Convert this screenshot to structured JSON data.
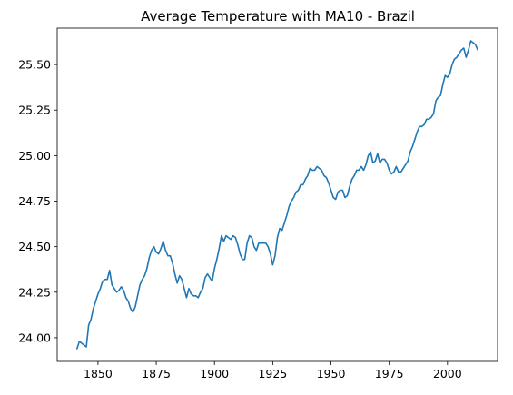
{
  "chart_data": {
    "type": "line",
    "title": "Average Temperature with MA10 - Brazil",
    "xlabel": "",
    "ylabel": "",
    "xlim": [
      1832.5,
      2021.5
    ],
    "ylim": [
      23.87,
      25.7
    ],
    "x_ticks": [
      1850,
      1875,
      1900,
      1925,
      1950,
      1975,
      2000
    ],
    "y_ticks": [
      24.0,
      24.25,
      24.5,
      24.75,
      25.0,
      25.25,
      25.5
    ],
    "x_tick_labels": [
      "1850",
      "1875",
      "1900",
      "1925",
      "1950",
      "1975",
      "2000"
    ],
    "y_tick_labels": [
      "24.00",
      "24.25",
      "24.50",
      "24.75",
      "25.00",
      "25.25",
      "25.50"
    ],
    "grid": false,
    "series": [
      {
        "color": "#1f77b4",
        "x": [
          1841,
          1842,
          1843,
          1844,
          1845,
          1846,
          1847,
          1848,
          1849,
          1850,
          1851,
          1852,
          1853,
          1854,
          1855,
          1856,
          1857,
          1858,
          1859,
          1860,
          1861,
          1862,
          1863,
          1864,
          1865,
          1866,
          1867,
          1868,
          1869,
          1870,
          1871,
          1872,
          1873,
          1874,
          1875,
          1876,
          1877,
          1878,
          1879,
          1880,
          1881,
          1882,
          1883,
          1884,
          1885,
          1886,
          1887,
          1888,
          1889,
          1890,
          1891,
          1892,
          1893,
          1894,
          1895,
          1896,
          1897,
          1898,
          1899,
          1900,
          1901,
          1902,
          1903,
          1904,
          1905,
          1906,
          1907,
          1908,
          1909,
          1910,
          1911,
          1912,
          1913,
          1914,
          1915,
          1916,
          1917,
          1918,
          1919,
          1920,
          1921,
          1922,
          1923,
          1924,
          1925,
          1926,
          1927,
          1928,
          1929,
          1930,
          1931,
          1932,
          1933,
          1934,
          1935,
          1936,
          1937,
          1938,
          1939,
          1940,
          1941,
          1942,
          1943,
          1944,
          1945,
          1946,
          1947,
          1948,
          1949,
          1950,
          1951,
          1952,
          1953,
          1954,
          1955,
          1956,
          1957,
          1958,
          1959,
          1960,
          1961,
          1962,
          1963,
          1964,
          1965,
          1966,
          1967,
          1968,
          1969,
          1970,
          1971,
          1972,
          1973,
          1974,
          1975,
          1976,
          1977,
          1978,
          1979,
          1980,
          1981,
          1982,
          1983,
          1984,
          1985,
          1986,
          1987,
          1988,
          1989,
          1990,
          1991,
          1992,
          1993,
          1994,
          1995,
          1996,
          1997,
          1998,
          1999,
          2000,
          2001,
          2002,
          2003,
          2004,
          2005,
          2006,
          2007,
          2008,
          2009,
          2010,
          2011,
          2012,
          2013
        ],
        "y": [
          23.94,
          23.98,
          23.97,
          23.96,
          23.95,
          24.07,
          24.1,
          24.16,
          24.2,
          24.24,
          24.27,
          24.31,
          24.32,
          24.32,
          24.37,
          24.29,
          24.27,
          24.25,
          24.26,
          24.28,
          24.26,
          24.22,
          24.2,
          24.16,
          24.14,
          24.17,
          24.23,
          24.29,
          24.32,
          24.34,
          24.38,
          24.44,
          24.48,
          24.5,
          24.47,
          24.46,
          24.49,
          24.53,
          24.48,
          24.45,
          24.45,
          24.41,
          24.35,
          24.3,
          24.34,
          24.32,
          24.27,
          24.22,
          24.27,
          24.24,
          24.23,
          24.23,
          24.22,
          24.25,
          24.27,
          24.33,
          24.35,
          24.33,
          24.31,
          24.38,
          24.43,
          24.49,
          24.56,
          24.53,
          24.56,
          24.55,
          24.54,
          24.56,
          24.55,
          24.51,
          24.46,
          24.43,
          24.43,
          24.52,
          24.56,
          24.55,
          24.5,
          24.48,
          24.52,
          24.52,
          24.52,
          24.52,
          24.5,
          24.46,
          24.4,
          24.45,
          24.55,
          24.6,
          24.59,
          24.63,
          24.67,
          24.72,
          24.75,
          24.77,
          24.8,
          24.81,
          24.84,
          24.84,
          24.87,
          24.89,
          24.93,
          24.92,
          24.92,
          24.94,
          24.93,
          24.92,
          24.89,
          24.88,
          24.85,
          24.81,
          24.77,
          24.76,
          24.8,
          24.81,
          24.81,
          24.77,
          24.78,
          24.83,
          24.87,
          24.89,
          24.92,
          24.92,
          24.94,
          24.92,
          24.95,
          25.0,
          25.02,
          24.96,
          24.97,
          25.01,
          24.96,
          24.98,
          24.98,
          24.96,
          24.92,
          24.9,
          24.91,
          24.94,
          24.91,
          24.91,
          24.93,
          24.95,
          24.97,
          25.02,
          25.05,
          25.09,
          25.13,
          25.16,
          25.16,
          25.17,
          25.2,
          25.2,
          25.21,
          25.23,
          25.3,
          25.32,
          25.33,
          25.39,
          25.44,
          25.43,
          25.45,
          25.5,
          25.53,
          25.54,
          25.56,
          25.58,
          25.59,
          25.54,
          25.58,
          25.63,
          25.62,
          25.61,
          25.58
        ]
      }
    ]
  }
}
